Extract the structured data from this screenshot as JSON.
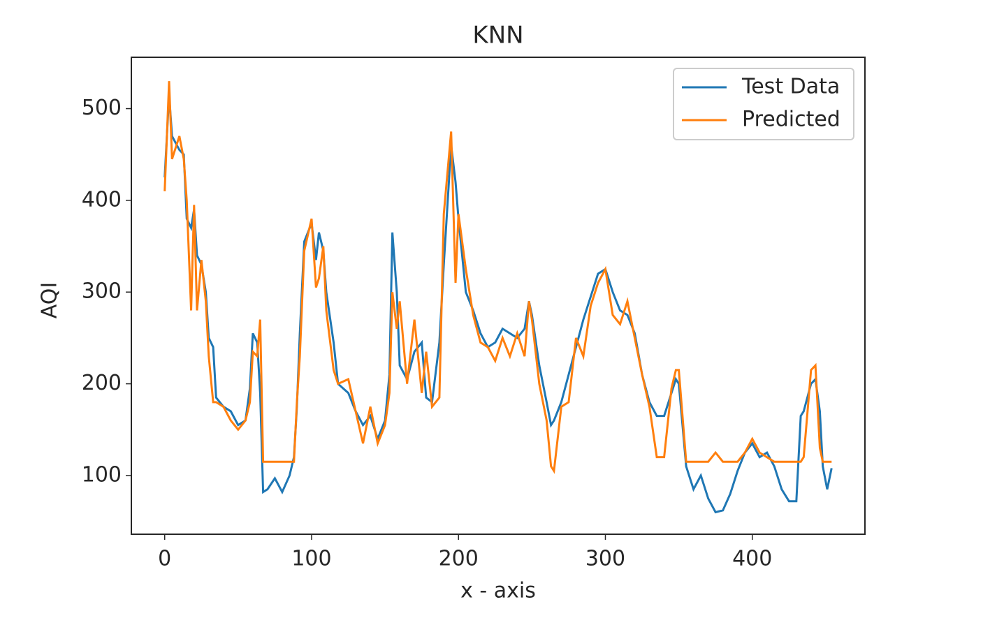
{
  "chart_data": {
    "type": "line",
    "title": "KNN",
    "x_label": "x - axis",
    "y_label": "AQI",
    "x": [
      0,
      3,
      5,
      10,
      13,
      15,
      18,
      20,
      22,
      25,
      28,
      30,
      33,
      35,
      40,
      45,
      50,
      55,
      58,
      60,
      63,
      65,
      67,
      70,
      75,
      80,
      85,
      88,
      90,
      92,
      95,
      100,
      103,
      105,
      108,
      110,
      115,
      118,
      125,
      130,
      135,
      140,
      145,
      150,
      153,
      155,
      158,
      160,
      165,
      170,
      175,
      178,
      182,
      187,
      190,
      195,
      198,
      200,
      205,
      210,
      215,
      220,
      225,
      230,
      235,
      240,
      245,
      248,
      250,
      255,
      260,
      263,
      265,
      270,
      275,
      280,
      285,
      290,
      295,
      300,
      305,
      310,
      315,
      320,
      325,
      330,
      335,
      340,
      345,
      348,
      350,
      355,
      360,
      365,
      370,
      375,
      380,
      385,
      390,
      395,
      400,
      405,
      410,
      415,
      420,
      425,
      430,
      433,
      435,
      440,
      443,
      446,
      448,
      451,
      454
    ],
    "series": [
      {
        "name": "Test Data",
        "color": "#1f77b4",
        "values": [
          425,
          515,
          470,
          455,
          450,
          380,
          370,
          390,
          340,
          330,
          300,
          250,
          240,
          185,
          175,
          170,
          155,
          160,
          195,
          255,
          245,
          190,
          82,
          85,
          97,
          82,
          100,
          120,
          175,
          255,
          355,
          375,
          335,
          365,
          345,
          300,
          245,
          200,
          190,
          170,
          155,
          165,
          140,
          160,
          210,
          365,
          300,
          220,
          205,
          235,
          245,
          185,
          180,
          245,
          330,
          460,
          420,
          380,
          300,
          280,
          255,
          240,
          245,
          260,
          255,
          250,
          260,
          290,
          275,
          220,
          180,
          155,
          160,
          180,
          210,
          240,
          270,
          295,
          320,
          325,
          300,
          280,
          275,
          255,
          210,
          180,
          165,
          165,
          190,
          205,
          200,
          110,
          85,
          100,
          75,
          60,
          62,
          80,
          105,
          125,
          135,
          120,
          125,
          110,
          85,
          72,
          72,
          165,
          170,
          200,
          205,
          170,
          110,
          85,
          108
        ]
      },
      {
        "name": "Predicted",
        "color": "#ff7f0e",
        "values": [
          410,
          530,
          445,
          470,
          445,
          400,
          280,
          395,
          280,
          335,
          290,
          230,
          180,
          180,
          175,
          160,
          150,
          160,
          180,
          235,
          230,
          270,
          115,
          115,
          115,
          115,
          115,
          115,
          180,
          230,
          345,
          380,
          305,
          315,
          350,
          280,
          215,
          200,
          205,
          170,
          135,
          175,
          135,
          155,
          190,
          300,
          260,
          290,
          200,
          270,
          190,
          235,
          175,
          185,
          385,
          475,
          310,
          385,
          325,
          275,
          245,
          240,
          225,
          250,
          230,
          255,
          230,
          290,
          270,
          200,
          160,
          110,
          105,
          175,
          180,
          250,
          230,
          285,
          310,
          325,
          275,
          265,
          290,
          250,
          210,
          175,
          120,
          120,
          195,
          215,
          215,
          115,
          115,
          115,
          115,
          125,
          115,
          115,
          115,
          125,
          140,
          125,
          120,
          115,
          115,
          115,
          115,
          115,
          120,
          215,
          220,
          130,
          115,
          115,
          115
        ]
      }
    ],
    "xlim": [
      -22.7,
      476.7
    ],
    "ylim": [
      36,
      556
    ],
    "xticks": [
      0,
      100,
      200,
      300,
      400
    ],
    "yticks": [
      100,
      200,
      300,
      400,
      500
    ],
    "legend": "upper right"
  }
}
